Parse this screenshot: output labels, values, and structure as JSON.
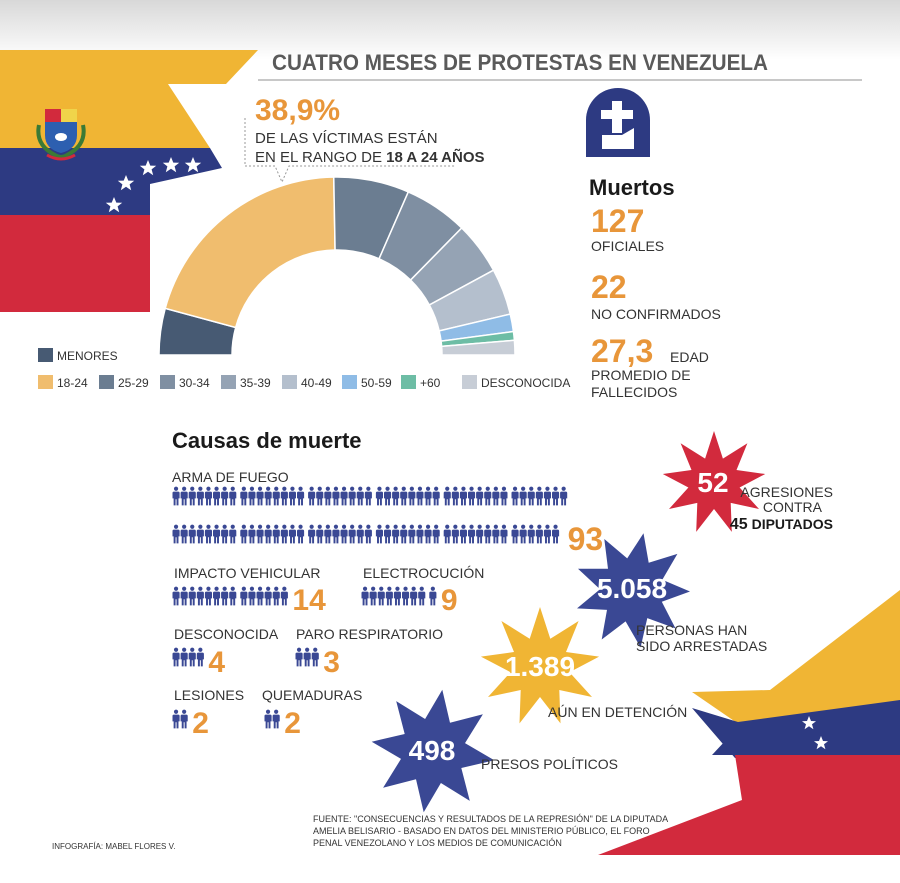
{
  "title": "CUATRO MESES DE PROTESTAS EN VENEZUELA",
  "age_highlight": {
    "percent": "38,9%",
    "line1": "DE LAS VÍCTIMAS ESTÁN",
    "line2_prefix": "EN EL RANGO DE ",
    "line2_bold": "18 A 24 AÑOS"
  },
  "age_chart": {
    "type": "semi-donut",
    "segments": [
      {
        "label": "MENORES",
        "value": 8,
        "color": "#475a73"
      },
      {
        "label": "18-24",
        "value": 38.9,
        "color": "#f0bd6e"
      },
      {
        "label": "25-29",
        "value": 13,
        "color": "#6b7d91"
      },
      {
        "label": "30-34",
        "value": 11,
        "color": "#7f8fa2"
      },
      {
        "label": "35-39",
        "value": 9,
        "color": "#95a3b4"
      },
      {
        "label": "40-49",
        "value": 8,
        "color": "#b4bfcd"
      },
      {
        "label": "50-59",
        "value": 3,
        "color": "#8fbce6"
      },
      {
        "label": "+60",
        "value": 1.5,
        "color": "#6dbda5"
      },
      {
        "label": "DESCONOCIDA",
        "value": 2.5,
        "color": "#c7cdd6"
      }
    ]
  },
  "muertos": {
    "title": "Muertos",
    "official_value": "127",
    "official_label": "OFICIALES",
    "unconfirmed_value": "22",
    "unconfirmed_label": "NO CONFIRMADOS",
    "age_value": "27,3",
    "age_unit": "EDAD",
    "age_label_1": "PROMEDIO DE",
    "age_label_2": "FALLECIDOS"
  },
  "causes": {
    "title": "Causas de muerte",
    "items": [
      {
        "label": "ARMA DE FUEGO",
        "count": 93,
        "value": "93"
      },
      {
        "label": "IMPACTO VEHICULAR",
        "count": 14,
        "value": "14"
      },
      {
        "label": "ELECTROCUCIÓN",
        "count": 9,
        "value": "9"
      },
      {
        "label": "DESCONOCIDA",
        "count": 4,
        "value": "4"
      },
      {
        "label": "PARO RESPIRATORIO",
        "count": 3,
        "value": "3"
      },
      {
        "label": "LESIONES",
        "count": 2,
        "value": "2"
      },
      {
        "label": "QUEMADURAS",
        "count": 2,
        "value": "2"
      }
    ]
  },
  "stats": {
    "aggressions_value": "52",
    "aggressions_line1": "AGRESIONES",
    "aggressions_line2": "CONTRA",
    "aggressions_line3_num": "45",
    "aggressions_line3_text": " DIPUTADOS",
    "arrested_value": "5.058",
    "arrested_line1": "PERSONAS HAN",
    "arrested_line2": "SIDO ARRESTADAS",
    "detained_value": "1.389",
    "detained_label": "AÚN EN DETENCIÓN",
    "political_value": "498",
    "political_label": "PRESOS POLÍTICOS"
  },
  "source": {
    "line1": "FUENTE:  \"CONSECUENCIAS Y RESULTADOS DE LA REPRESIÓN\" DE LA DIPUTADA",
    "line2": "AMELIA BELISARIO - BASADO EN DATOS DEL MINISTERIO PÚBLICO, EL FORO",
    "line3": "PENAL VENEZOLANO Y LOS MEDIOS DE COMUNICACIÓN"
  },
  "credit": "INFOGRAFÍA: MABEL FLORES V.",
  "colors": {
    "yellow": "#f0b534",
    "blue": "#2d3a82",
    "red": "#d22a3d",
    "orange": "#e8963a",
    "navy": "#3a4894",
    "grey_text": "#5a5a5a"
  },
  "icons": {
    "cross": "tombstone-cross-icon",
    "person": "person-icon",
    "coat_of_arms": "coat-of-arms-icon",
    "star": "star-icon"
  }
}
